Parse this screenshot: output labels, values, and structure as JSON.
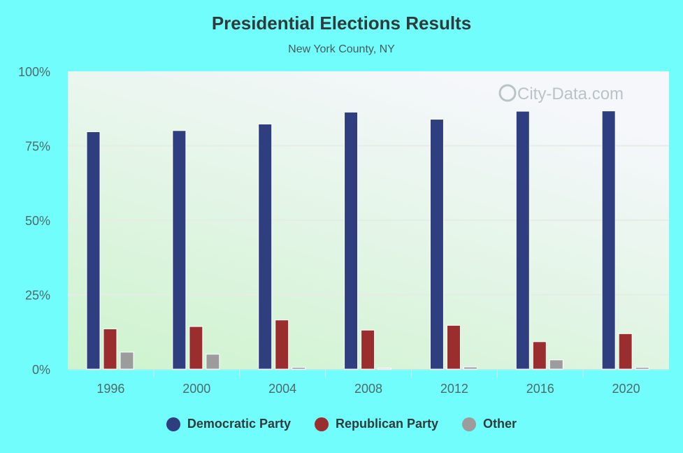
{
  "chart_data": {
    "type": "bar",
    "title": "Presidential Elections Results",
    "subtitle": "New York County, NY",
    "xlabel": "",
    "ylabel": "",
    "ylim": [
      0,
      100
    ],
    "y_ticks": [
      "0%",
      "25%",
      "50%",
      "75%",
      "100%"
    ],
    "categories": [
      "1996",
      "2000",
      "2004",
      "2008",
      "2012",
      "2016",
      "2020"
    ],
    "series": [
      {
        "name": "Democratic Party",
        "color": "#2e3e7e",
        "values": [
          79.7,
          80.1,
          82.3,
          86.3,
          83.9,
          86.6,
          86.7
        ]
      },
      {
        "name": "Republican Party",
        "color": "#9a2e2e",
        "values": [
          13.5,
          14.3,
          16.5,
          13.1,
          14.7,
          9.2,
          11.9
        ]
      },
      {
        "name": "Other",
        "color": "#9c9c9c",
        "values": [
          5.7,
          5.0,
          0.6,
          0.3,
          0.7,
          3.1,
          0.6
        ]
      }
    ],
    "grid": true,
    "legend_position": "bottom",
    "watermark": "City-Data.com"
  }
}
